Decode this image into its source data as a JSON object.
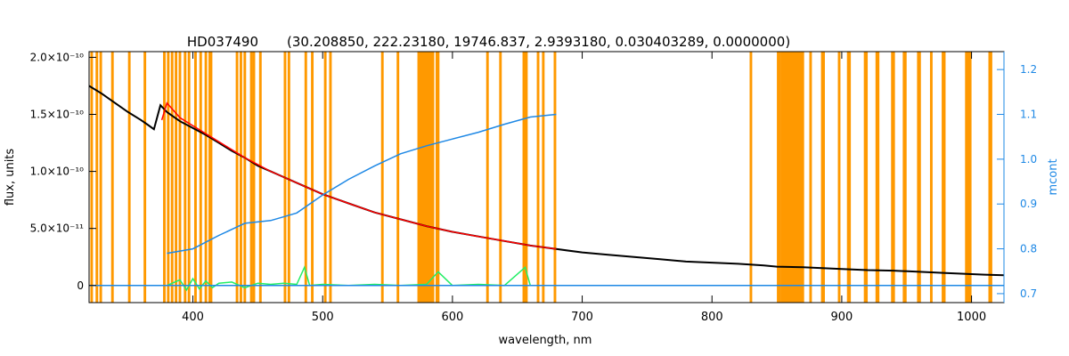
{
  "chart_data": {
    "type": "line",
    "title": "HD037490",
    "subtitle": "(30.208850, 222.23180, 19746.837, 2.9393180, 0.030403289, 0.0000000)",
    "xlabel": "wavelength, nm",
    "ylabel": "flux, units",
    "y2label": "mcont",
    "xlim": [
      320,
      1025
    ],
    "ylim": [
      -1.5e-11,
      2.05e-10
    ],
    "y2lim": [
      0.68,
      1.24
    ],
    "grid": false,
    "x_ticks": [
      {
        "value": 400,
        "label": "400"
      },
      {
        "value": 500,
        "label": "500"
      },
      {
        "value": 600,
        "label": "600"
      },
      {
        "value": 700,
        "label": "700"
      },
      {
        "value": 800,
        "label": "800"
      },
      {
        "value": 900,
        "label": "900"
      },
      {
        "value": 1000,
        "label": "1000"
      }
    ],
    "y_ticks": [
      {
        "value": 0,
        "label": "0"
      },
      {
        "value": 5e-11,
        "label": "5.0×10⁻¹¹"
      },
      {
        "value": 1e-10,
        "label": "1.0×10⁻¹⁰"
      },
      {
        "value": 1.5e-10,
        "label": "1.5×10⁻¹⁰"
      },
      {
        "value": 2e-10,
        "label": "2.0×10⁻¹⁰"
      }
    ],
    "y2_ticks": [
      {
        "value": 0.7,
        "label": "0.7"
      },
      {
        "value": 0.8,
        "label": "0.8"
      },
      {
        "value": 0.9,
        "label": "0.9"
      },
      {
        "value": 1.0,
        "label": "1.0"
      },
      {
        "value": 1.1,
        "label": "1.1"
      },
      {
        "value": 1.2,
        "label": "1.2"
      }
    ],
    "masked_regions": [
      [
        321,
        323
      ],
      [
        325,
        327
      ],
      [
        328,
        330
      ],
      [
        337,
        339
      ],
      [
        350,
        352
      ],
      [
        362,
        364
      ],
      [
        377,
        379
      ],
      [
        380,
        382
      ],
      [
        383,
        385
      ],
      [
        386,
        388
      ],
      [
        389,
        391
      ],
      [
        393,
        395
      ],
      [
        396,
        398
      ],
      [
        401,
        403
      ],
      [
        405,
        407
      ],
      [
        409,
        411
      ],
      [
        412,
        415
      ],
      [
        433,
        435
      ],
      [
        436,
        438
      ],
      [
        439,
        441
      ],
      [
        444,
        446
      ],
      [
        446,
        448
      ],
      [
        451,
        453
      ],
      [
        470,
        472
      ],
      [
        473,
        475
      ],
      [
        486,
        488
      ],
      [
        491,
        493
      ],
      [
        501,
        503
      ],
      [
        505,
        507
      ],
      [
        545,
        547
      ],
      [
        557,
        559
      ],
      [
        573,
        586
      ],
      [
        587,
        590
      ],
      [
        626,
        628
      ],
      [
        636,
        638
      ],
      [
        654,
        658
      ],
      [
        665,
        667
      ],
      [
        669,
        671
      ],
      [
        678,
        680
      ],
      [
        829,
        831
      ],
      [
        850,
        853
      ],
      [
        853,
        871
      ],
      [
        875,
        877
      ],
      [
        884,
        887
      ],
      [
        897,
        899
      ],
      [
        904,
        907
      ],
      [
        917,
        920
      ],
      [
        926,
        929
      ],
      [
        938,
        941
      ],
      [
        947,
        950
      ],
      [
        958,
        961
      ],
      [
        968,
        970
      ],
      [
        977,
        980
      ],
      [
        995,
        1000
      ],
      [
        1013,
        1016
      ]
    ],
    "series": [
      {
        "color": "#000000",
        "x": [
          320,
          330,
          340,
          350,
          360,
          365,
          370,
          375,
          380,
          385,
          390,
          400,
          410,
          420,
          430,
          440,
          450,
          460,
          470,
          480,
          490,
          500,
          520,
          540,
          560,
          580,
          600,
          620,
          640,
          660,
          680,
          700,
          720,
          740,
          760,
          780,
          800,
          820,
          840,
          850,
          870,
          900,
          920,
          940,
          960,
          980,
          1000,
          1010,
          1025
        ],
        "y": [
          1.75e-10,
          1.68e-10,
          1.6e-10,
          1.52e-10,
          1.45e-10,
          1.41e-10,
          1.37e-10,
          1.58e-10,
          1.52e-10,
          1.48e-10,
          1.44e-10,
          1.38e-10,
          1.32e-10,
          1.25e-10,
          1.18e-10,
          1.12e-10,
          1.05e-10,
          1e-10,
          9.5e-11,
          9e-11,
          8.5e-11,
          8e-11,
          7.2e-11,
          6.4e-11,
          5.8e-11,
          5.2e-11,
          4.7e-11,
          4.3e-11,
          3.9e-11,
          3.5e-11,
          3.2e-11,
          2.9e-11,
          2.7e-11,
          2.5e-11,
          2.3e-11,
          2.1e-11,
          2e-11,
          1.9e-11,
          1.75e-11,
          1.65e-11,
          1.6e-11,
          1.45e-11,
          1.35e-11,
          1.3e-11,
          1.2e-11,
          1.1e-11,
          1e-11,
          9.5e-12,
          9e-12
        ]
      },
      {
        "color": "#ff0000",
        "x": [
          376,
          380,
          390,
          400,
          410,
          420,
          430,
          440,
          450,
          460,
          470,
          480,
          490,
          500,
          520,
          540,
          560,
          580,
          600,
          620,
          640,
          660,
          680
        ],
        "y": [
          1.45e-10,
          1.6e-10,
          1.47e-10,
          1.4e-10,
          1.33e-10,
          1.26e-10,
          1.19e-10,
          1.12e-10,
          1.06e-10,
          1e-10,
          9.5e-11,
          9e-11,
          8.5e-11,
          8e-11,
          7.2e-11,
          6.4e-11,
          5.8e-11,
          5.2e-11,
          4.7e-11,
          4.3e-11,
          3.9e-11,
          3.5e-11,
          3.2e-11
        ]
      },
      {
        "color": "#22ee66",
        "x": [
          380,
          390,
          395,
          400,
          405,
          410,
          415,
          420,
          430,
          440,
          450,
          460,
          470,
          480,
          486,
          490,
          500,
          520,
          540,
          560,
          580,
          589,
          600,
          620,
          640,
          656,
          660,
          680
        ],
        "y": [
          0,
          5e-12,
          -4e-12,
          6e-12,
          -3e-12,
          4e-12,
          -2e-12,
          2e-12,
          3e-12,
          -2e-12,
          2e-12,
          1e-12,
          2e-12,
          1e-12,
          1.6e-11,
          0,
          1e-12,
          0,
          1e-12,
          0,
          1e-12,
          1.2e-11,
          0,
          1e-12,
          0,
          1.6e-11,
          0,
          0
        ]
      },
      {
        "color": "#1e88e5",
        "axis": "right",
        "x": [
          380,
          400,
          420,
          440,
          460,
          480,
          500,
          520,
          540,
          560,
          580,
          600,
          620,
          640,
          660,
          680
        ],
        "y": [
          0.79,
          0.8,
          0.83,
          0.857,
          0.863,
          0.88,
          0.92,
          0.955,
          0.985,
          1.012,
          1.03,
          1.045,
          1.06,
          1.078,
          1.094,
          1.1
        ]
      },
      {
        "color": "#1e88e5",
        "x": [
          320,
          360,
          400,
          500,
          600,
          700,
          800,
          900,
          1000,
          1025
        ],
        "y": [
          0,
          0,
          0,
          0,
          0,
          0,
          0,
          0,
          0,
          0
        ]
      }
    ]
  }
}
